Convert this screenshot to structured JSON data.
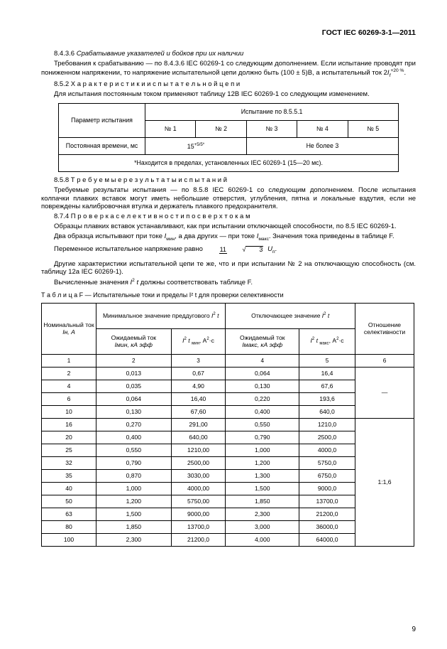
{
  "header": "ГОСТ IEC 60269-3-1—2011",
  "s8436_title": "8.4.3.6 Срабатывание указателей и бойков при их наличии",
  "s8436_p": "Требования к срабатыванию — по 8.4.3.6 IEC 60269-1 со следующим дополнением. Если испытание проводят при пониженном напряжении, то напряжение испытательной цепи должно быть (100 ± 5)В, а испытательный ток 2",
  "s8436_tail": ".",
  "s852_title": "8.5.2  Х а р а к т е р и с т и к и   и с п ы т а т е л ь н о й   ц е п и",
  "s852_p": "Для испытания постоянным током применяют таблицу 12В IEC 60269-1 со следующим изменением.",
  "t1": {
    "param_hdr": "Параметр испытания",
    "test_hdr": "Испытание по 8.5.5.1",
    "cols": [
      "№ 1",
      "№ 2",
      "№ 3",
      "№ 4",
      "№ 5"
    ],
    "row_label": "Постоянная времени, мс",
    "v12": "15",
    "v12_sup": "+5/5*",
    "v345": "Не более 3",
    "note": "*Находится в пределах, установленных IEC 60269-1 (15—20 мс)."
  },
  "s858_title": "8.5.8  Т р е б у е м ы е   р е з у л ь т а т ы   и с п ы т а н и й",
  "s858_p": "Требуемые результаты испытания — по 8.5.8 IEC 60269-1 со следующим дополнением. После испытания колпачки плавких вставок могут иметь небольшие отверстия, углубления, пятна и локальные вздутия, если не повреждены калибровочная втулка и держатель плавкого предохранителя.",
  "s874_title": "8.7.4  П р о в е р к а   с е л е к т и в н о с т и   п о   с в е р х т о к а м",
  "s874_p1a": "Образцы плавких вставок устанавливают, как при испытании отключающей способности, по 8.5 IEC 60269-1.",
  "s874_p2a": "Два образца испытывают при токе ",
  "s874_p2b": ", а два других — при токе ",
  "s874_p2c": ". Значения тока приведены в таблице F.",
  "s874_p3": "Переменное испытательное напряжение равно ",
  "s874_p4": "Другие характеристики испытательной цепи те же, что и при испытании № 2 на отключающую способность (см. таблицу 12а IEC 60269-1).",
  "s874_p5a": "Вычисленные значения ",
  "s874_p5b": " должны соответствовать таблице F.",
  "tF_caption": "Т а б л и ц а  F — Испытательные токи и пределы I² t для проверки селективности",
  "tF": {
    "grp1": "Минимальное значение преддугового I² t",
    "grp2": "Отключающее значение I² t",
    "col1": "Номинальный ток",
    "col1s": "Iн, А",
    "col2": "Ожидаемый ток",
    "col2s": "Iмин, кА эфф",
    "col3a": "I² t",
    "col3b": ", А²·с",
    "col4": "Ожидаемый ток",
    "col4s": "Iмакс, кА эфф",
    "col5a": "I² t",
    "col5b": ", А²·с",
    "col6": "Отношение селективности",
    "nums": [
      "1",
      "2",
      "3",
      "4",
      "5",
      "6"
    ],
    "rows": [
      [
        "2",
        "0,013",
        "0,67",
        "0,064",
        "16,4"
      ],
      [
        "4",
        "0,035",
        "4,90",
        "0,130",
        "67,6"
      ],
      [
        "6",
        "0,064",
        "16,40",
        "0,220",
        "193,6"
      ],
      [
        "10",
        "0,130",
        "67,60",
        "0,400",
        "640,0"
      ],
      [
        "16",
        "0,270",
        "291,00",
        "0,550",
        "1210,0"
      ],
      [
        "20",
        "0,400",
        "640,00",
        "0,790",
        "2500,0"
      ],
      [
        "25",
        "0,550",
        "1210,00",
        "1,000",
        "4000,0"
      ],
      [
        "32",
        "0,790",
        "2500,00",
        "1,200",
        "5750,0"
      ],
      [
        "35",
        "0,870",
        "3030,00",
        "1,300",
        "6750,0"
      ],
      [
        "40",
        "1,000",
        "4000,00",
        "1,500",
        "9000,0"
      ],
      [
        "50",
        "1,200",
        "5750,00",
        "1,850",
        "13700,0"
      ],
      [
        "63",
        "1,500",
        "9000,00",
        "2,300",
        "21200,0"
      ],
      [
        "80",
        "1,850",
        "13700,0",
        "3,000",
        "36000,0"
      ],
      [
        "100",
        "2,300",
        "21200,0",
        "4,000",
        "64000,0"
      ]
    ],
    "ratio_top": "—",
    "ratio_bottom": "1:1,6"
  },
  "pagenum": "9"
}
